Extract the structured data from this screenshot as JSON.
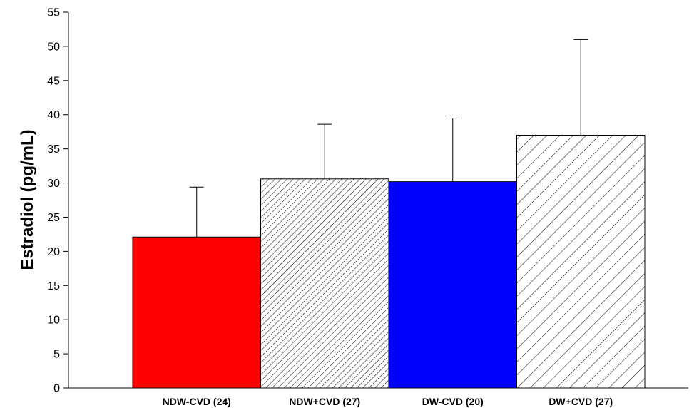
{
  "chart_data": {
    "type": "bar",
    "title": "",
    "xlabel": "",
    "ylabel": "Estradiol (pg/mL)",
    "ylim": [
      0,
      55
    ],
    "yticks": [
      0,
      5,
      10,
      15,
      20,
      25,
      30,
      35,
      40,
      45,
      50,
      55
    ],
    "grid": false,
    "legend": "none",
    "categories": [
      "NDW-CVD (24)",
      "NDW+CVD (27)",
      "DW-CVD (20)",
      "DW+CVD (27)"
    ],
    "values": [
      22.1,
      30.6,
      30.2,
      37.0
    ],
    "error_upper": [
      7.3,
      8.0,
      9.3,
      14.0
    ],
    "bar_styles": [
      {
        "fill": "#ff0000",
        "pattern": "solid"
      },
      {
        "fill": "#ffffff",
        "pattern": "fine-diagonal-hatch",
        "pattern_color": "#000000"
      },
      {
        "fill": "#0000ff",
        "pattern": "solid"
      },
      {
        "fill": "#ffffff",
        "pattern": "wide-diagonal-hatch",
        "pattern_color": "#000000"
      }
    ]
  }
}
